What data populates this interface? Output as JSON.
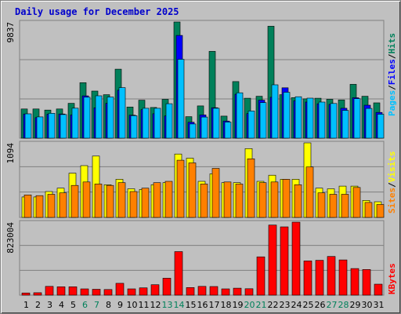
{
  "chart_data": [
    {
      "type": "bar",
      "title": "Daily usage for December 2025",
      "categories": [
        "1",
        "2",
        "3",
        "4",
        "5",
        "6",
        "7",
        "8",
        "9",
        "10",
        "11",
        "12",
        "13",
        "14",
        "15",
        "16",
        "17",
        "18",
        "19",
        "20",
        "21",
        "22",
        "23",
        "24",
        "25",
        "26",
        "27",
        "28",
        "29",
        "30",
        "31"
      ],
      "weekend_days": [
        "6",
        "7",
        "13",
        "14",
        "20",
        "21",
        "27",
        "28"
      ],
      "ylabel_max": "9837",
      "ymax": 9837,
      "series": [
        {
          "name": "Hits",
          "color": "#00805a",
          "values": [
            2470,
            2470,
            2380,
            2470,
            2950,
            4700,
            3990,
            3680,
            5840,
            2640,
            3220,
            2600,
            3290,
            9837,
            1820,
            2730,
            7350,
            1870,
            4790,
            3380,
            3550,
            9480,
            3680,
            3430,
            3330,
            3380,
            3290,
            3240,
            4560,
            3550,
            2990
          ]
        },
        {
          "name": "Files",
          "color": "#0000ff",
          "values": [
            2050,
            1740,
            2030,
            2050,
            1970,
            3580,
            2570,
            2950,
            4060,
            1950,
            2410,
            2070,
            1880,
            8700,
            1350,
            1970,
            2580,
            1450,
            3720,
            2080,
            3220,
            3460,
            4270,
            3170,
            3060,
            2910,
            2860,
            2530,
            3420,
            2790,
            2180
          ]
        },
        {
          "name": "Pages",
          "color": "#00c0ff",
          "values": [
            2060,
            1800,
            2110,
            2000,
            2540,
            3470,
            3590,
            3480,
            4280,
            1900,
            2530,
            2530,
            2920,
            6680,
            1200,
            1790,
            2530,
            1360,
            3840,
            2300,
            3010,
            4520,
            3890,
            3510,
            3390,
            3060,
            2940,
            2350,
            3340,
            2520,
            2030
          ]
        }
      ]
    },
    {
      "type": "bar",
      "ylabel_max": "1094",
      "ymax": 1094,
      "series": [
        {
          "name": "Visits",
          "color": "#ffff00",
          "values": [
            300,
            300,
            380,
            430,
            650,
            760,
            900,
            480,
            560,
            420,
            410,
            480,
            510,
            930,
            870,
            530,
            640,
            510,
            510,
            1010,
            530,
            620,
            560,
            560,
            1094,
            430,
            420,
            460,
            460,
            250,
            230
          ]
        },
        {
          "name": "Sites",
          "color": "#ff8000",
          "values": [
            330,
            320,
            340,
            360,
            470,
            520,
            490,
            470,
            510,
            380,
            430,
            510,
            530,
            840,
            800,
            490,
            720,
            520,
            490,
            860,
            510,
            520,
            560,
            480,
            740,
            360,
            340,
            340,
            440,
            220,
            190
          ]
        }
      ]
    },
    {
      "type": "bar",
      "ylabel_max": "823004",
      "ymax": 823004,
      "series": [
        {
          "name": "KBytes",
          "color": "#ff0000",
          "values": [
            25000,
            27000,
            99000,
            95000,
            95000,
            71000,
            66000,
            64000,
            134000,
            71000,
            82000,
            118000,
            191000,
            491000,
            86000,
            99000,
            97000,
            71000,
            79000,
            73000,
            432000,
            790000,
            770000,
            823000,
            386000,
            393000,
            436000,
            397000,
            300000,
            289000,
            124000
          ]
        }
      ]
    }
  ],
  "legend_top": {
    "pages": "Pages",
    "files": "Files",
    "hits": "Hits",
    "sep": "/"
  },
  "legend_mid": {
    "sites": "Sites",
    "visits": "Visits",
    "sep": "/"
  },
  "legend_bot": {
    "kbytes": "KBytes"
  }
}
